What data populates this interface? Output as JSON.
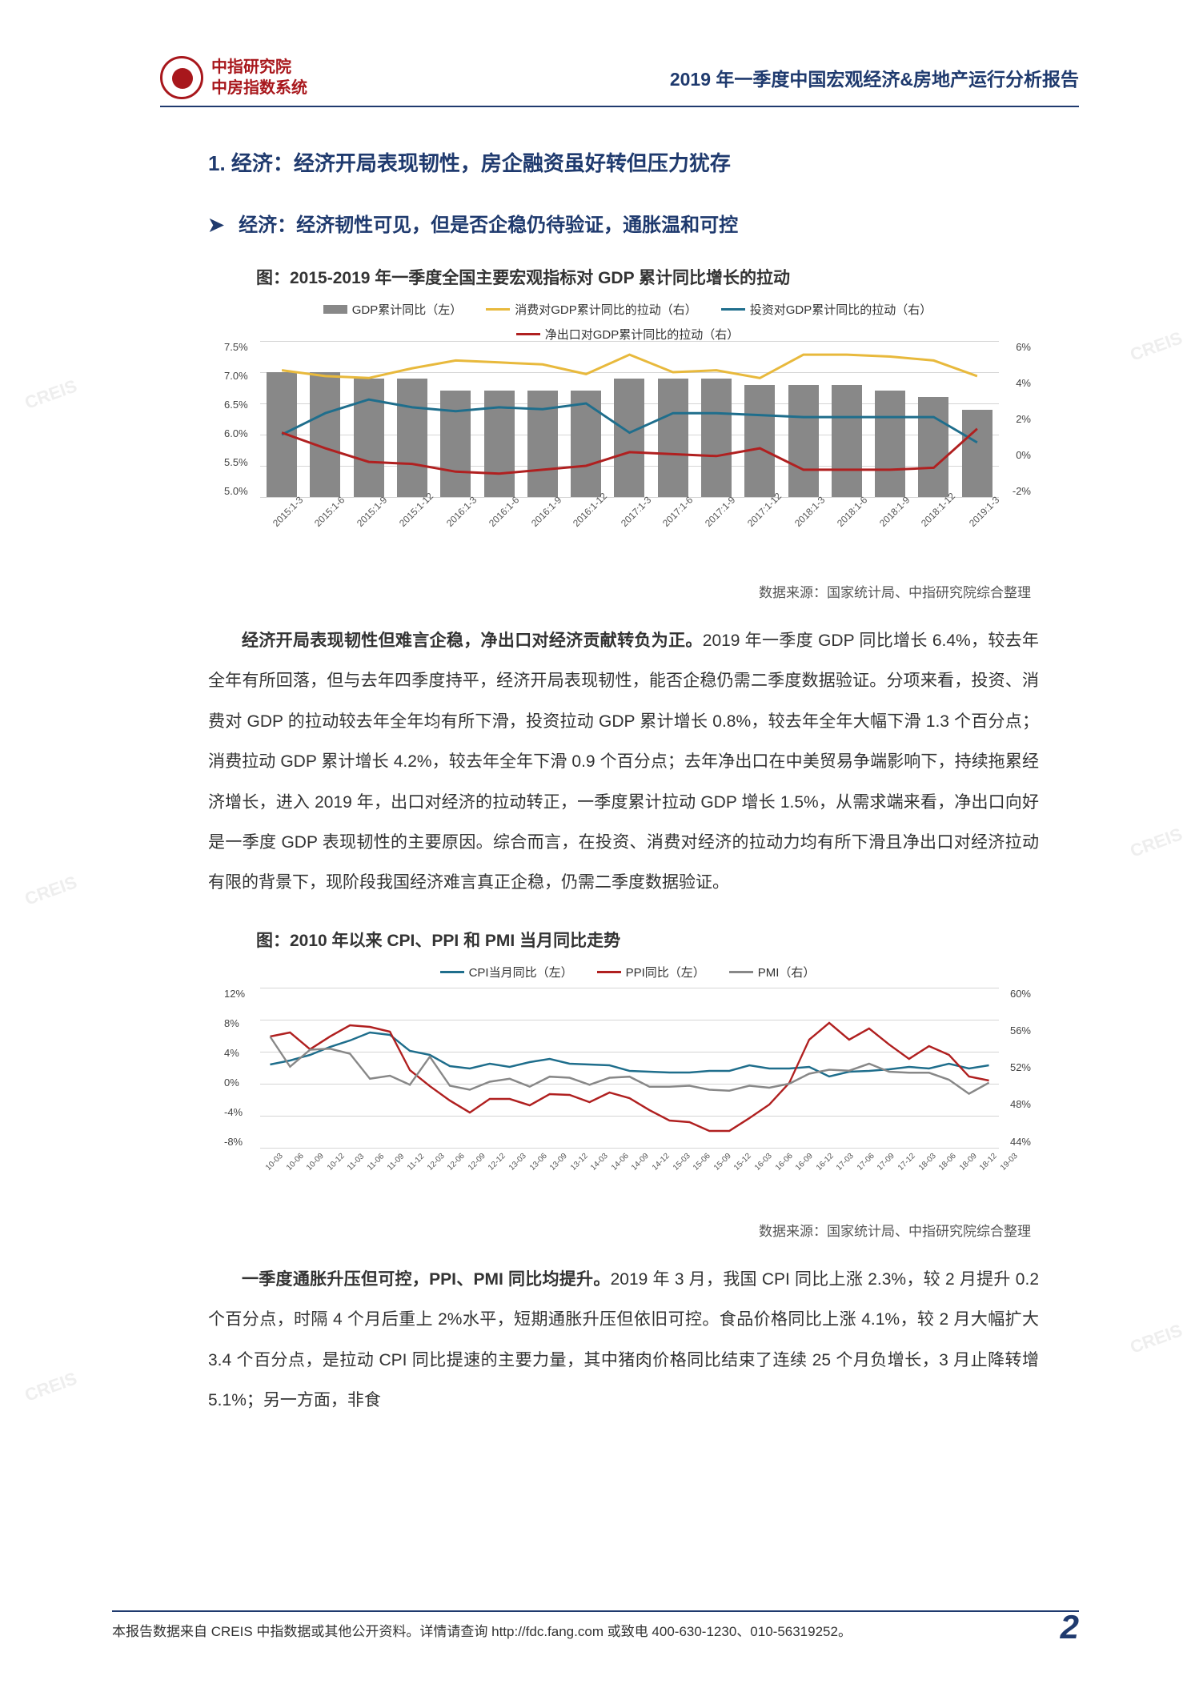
{
  "header": {
    "org_line1": "中指研究院",
    "org_line2": "中房指数系统",
    "report_title": "2019 年一季度中国宏观经济&房地产运行分析报告"
  },
  "section": {
    "h1_num": "1.",
    "h1_text": "经济：经济开局表现韧性，房企融资虽好转但压力犹存",
    "h2_arrow": "➤",
    "h2_text": "经济：经济韧性可见，但是否企稳仍待验证，通胀温和可控"
  },
  "chart1": {
    "title": "图：2015-2019 年一季度全国主要宏观指标对 GDP 累计同比增长的拉动",
    "legend": [
      {
        "label": "GDP累计同比（左）",
        "color": "#888888",
        "type": "bar"
      },
      {
        "label": "消费对GDP累计同比的拉动（右）",
        "color": "#e8b93c",
        "type": "line"
      },
      {
        "label": "投资对GDP累计同比的拉动（右）",
        "color": "#1f6e8c",
        "type": "line"
      },
      {
        "label": "净出口对GDP累计同比的拉动（右）",
        "color": "#b02020",
        "type": "line"
      }
    ],
    "y_left": {
      "min": 5.0,
      "max": 7.5,
      "step": 0.5,
      "labels": [
        "7.5%",
        "7.0%",
        "6.5%",
        "6.0%",
        "5.5%",
        "5.0%"
      ]
    },
    "y_right": {
      "min": -2,
      "max": 6,
      "step": 2,
      "labels": [
        "6%",
        "4%",
        "2%",
        "0%",
        "-2%"
      ]
    },
    "x_labels": [
      "2015:1-3",
      "2015:1-6",
      "2015:1-9",
      "2015:1-12",
      "2016:1-3",
      "2016:1-6",
      "2016:1-9",
      "2016:1-12",
      "2017:1-3",
      "2017:1-6",
      "2017:1-9",
      "2017:1-12",
      "2018:1-3",
      "2018:1-6",
      "2018:1-9",
      "2018:1-12",
      "2019:1-3"
    ],
    "gdp_bars": [
      7.0,
      7.0,
      6.9,
      6.9,
      6.7,
      6.7,
      6.7,
      6.7,
      6.9,
      6.9,
      6.9,
      6.8,
      6.8,
      6.8,
      6.7,
      6.6,
      6.4
    ],
    "consume_line": [
      4.5,
      4.2,
      4.1,
      4.6,
      5.0,
      4.9,
      4.8,
      4.3,
      5.3,
      4.4,
      4.5,
      4.1,
      5.3,
      5.3,
      5.2,
      5.0,
      4.2
    ],
    "invest_line": [
      1.2,
      2.3,
      3.0,
      2.6,
      2.4,
      2.6,
      2.5,
      2.8,
      1.3,
      2.3,
      2.3,
      2.2,
      2.1,
      2.1,
      2.1,
      2.1,
      0.8
    ],
    "netexp_line": [
      1.3,
      0.5,
      -0.2,
      -0.3,
      -0.7,
      -0.8,
      -0.6,
      -0.4,
      0.3,
      0.2,
      0.1,
      0.5,
      -0.6,
      -0.6,
      -0.6,
      -0.5,
      1.5
    ],
    "bar_color": "#888888",
    "grid_color": "#d5d5d5",
    "source": "数据来源：国家统计局、中指研究院综合整理"
  },
  "para1": {
    "bold": "经济开局表现韧性但难言企稳，净出口对经济贡献转负为正。",
    "rest": "2019 年一季度 GDP 同比增长 6.4%，较去年全年有所回落，但与去年四季度持平，经济开局表现韧性，能否企稳仍需二季度数据验证。分项来看，投资、消费对 GDP 的拉动较去年全年均有所下滑，投资拉动 GDP 累计增长 0.8%，较去年全年大幅下滑 1.3 个百分点；消费拉动 GDP 累计增长 4.2%，较去年全年下滑 0.9 个百分点；去年净出口在中美贸易争端影响下，持续拖累经济增长，进入 2019 年，出口对经济的拉动转正，一季度累计拉动 GDP 增长 1.5%，从需求端来看，净出口向好是一季度 GDP 表现韧性的主要原因。综合而言，在投资、消费对经济的拉动力均有所下滑且净出口对经济拉动有限的背景下，现阶段我国经济难言真正企稳，仍需二季度数据验证。"
  },
  "chart2": {
    "title": "图：2010 年以来 CPI、PPI 和 PMI 当月同比走势",
    "legend": [
      {
        "label": "CPI当月同比（左）",
        "color": "#1f6e8c",
        "type": "line"
      },
      {
        "label": "PPI同比（左）",
        "color": "#b02020",
        "type": "line"
      },
      {
        "label": "PMI（右）",
        "color": "#888888",
        "type": "line"
      }
    ],
    "y_left": {
      "min": -8,
      "max": 12,
      "step": 4,
      "labels": [
        "12%",
        "8%",
        "4%",
        "0%",
        "-4%",
        "-8%"
      ]
    },
    "y_right": {
      "min": 44,
      "max": 60,
      "step": 4,
      "labels": [
        "60%",
        "56%",
        "52%",
        "48%",
        "44%"
      ]
    },
    "x_labels": [
      "10-03",
      "10-06",
      "10-09",
      "10-12",
      "11-03",
      "11-06",
      "11-09",
      "11-12",
      "12-03",
      "12-06",
      "12-09",
      "12-12",
      "13-03",
      "13-06",
      "13-09",
      "13-12",
      "14-03",
      "14-06",
      "14-09",
      "14-12",
      "15-03",
      "15-06",
      "15-09",
      "15-12",
      "16-03",
      "16-06",
      "16-09",
      "16-12",
      "17-03",
      "17-06",
      "17-09",
      "17-12",
      "18-03",
      "18-06",
      "18-09",
      "18-12",
      "19-03"
    ],
    "cpi": [
      2.4,
      2.9,
      3.6,
      4.6,
      5.4,
      6.4,
      6.1,
      4.1,
      3.6,
      2.2,
      1.9,
      2.5,
      2.1,
      2.7,
      3.1,
      2.5,
      2.4,
      2.3,
      1.6,
      1.5,
      1.4,
      1.4,
      1.6,
      1.6,
      2.3,
      1.9,
      1.9,
      2.1,
      0.9,
      1.5,
      1.6,
      1.8,
      2.1,
      1.9,
      2.5,
      1.9,
      2.3
    ],
    "ppi": [
      5.9,
      6.4,
      4.3,
      5.9,
      7.3,
      7.1,
      6.5,
      1.7,
      -0.3,
      -2.1,
      -3.6,
      -1.9,
      -1.9,
      -2.7,
      -1.3,
      -1.4,
      -2.3,
      -1.1,
      -1.8,
      -3.3,
      -4.6,
      -4.8,
      -5.9,
      -5.9,
      -4.3,
      -2.6,
      0.1,
      5.5,
      7.6,
      5.5,
      6.9,
      4.9,
      3.1,
      4.7,
      3.6,
      0.9,
      0.4
    ],
    "pmi": [
      55.1,
      52.1,
      53.8,
      53.9,
      53.4,
      50.9,
      51.2,
      50.3,
      53.1,
      50.2,
      49.8,
      50.6,
      50.9,
      50.1,
      51.1,
      51.0,
      50.3,
      51.0,
      51.1,
      50.1,
      50.1,
      50.2,
      49.8,
      49.7,
      50.2,
      50.0,
      50.4,
      51.4,
      51.8,
      51.7,
      52.4,
      51.6,
      51.5,
      51.5,
      50.8,
      49.4,
      50.5
    ],
    "grid_color": "#d5d5d5",
    "source": "数据来源：国家统计局、中指研究院综合整理"
  },
  "para2": {
    "bold": "一季度通胀升压但可控，PPI、PMI 同比均提升。",
    "rest": "2019 年 3 月，我国 CPI 同比上涨 2.3%，较 2 月提升 0.2 个百分点，时隔 4 个月后重上 2%水平，短期通胀升压但依旧可控。食品价格同比上涨 4.1%，较 2 月大幅扩大 3.4 个百分点，是拉动 CPI 同比提速的主要力量，其中猪肉价格同比结束了连续 25 个月负增长，3 月止降转增 5.1%；另一方面，非食"
  },
  "footer": {
    "text": "本报告数据来自 CREIS 中指数据或其他公开资料。详情请查询 http://fdc.fang.com 或致电 400-630-1230、010-56319252。",
    "page": "2"
  },
  "watermark": "CREIS",
  "colors": {
    "brand_blue": "#1f3a6e",
    "brand_red": "#a8171c"
  }
}
